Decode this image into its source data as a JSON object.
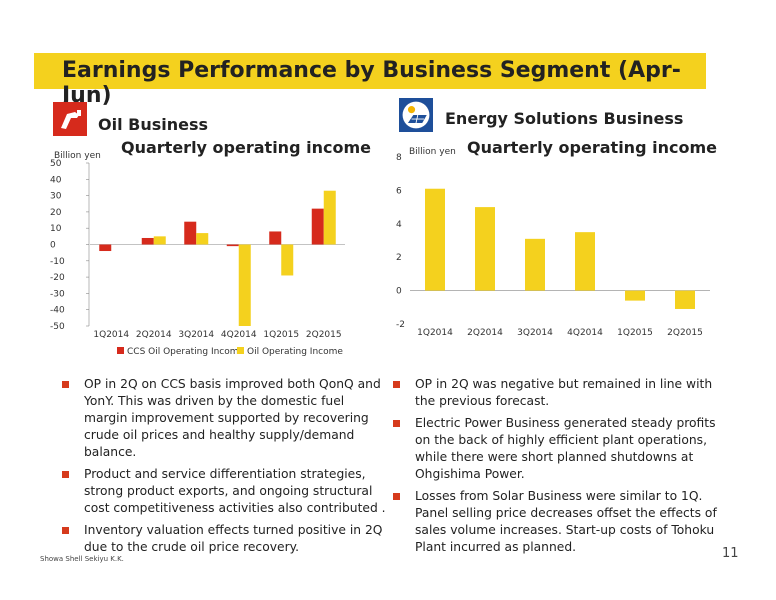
{
  "title": "Earnings Performance by Business Segment (Apr-Jun)",
  "oil": {
    "section_title": "Oil Business",
    "chart_title": "Quarterly operating income",
    "icon": "fuel-nozzle-icon"
  },
  "energy": {
    "section_title": "Energy Solutions Business",
    "chart_title": "Quarterly operating income",
    "icon": "solar-panel-icon"
  },
  "oil_bullets": [
    "OP in 2Q on CCS basis improved both QonQ and YonY.  This was driven by the domestic fuel margin improvement supported by recovering crude oil prices and healthy supply/demand balance.",
    "Product and service differentiation strategies, strong product exports, and ongoing structural cost competitiveness activities also contributed .",
    "Inventory valuation effects turned positive in 2Q due to the crude oil price recovery."
  ],
  "energy_bullets": [
    "OP in 2Q was negative but remained in line with the previous forecast.",
    "Electric Power Business generated steady profits on the back of highly efficient plant operations, while there were short planned shutdowns at Ohgishima Power.",
    "Losses from Solar Business were similar to 1Q. Panel selling price decreases offset the effects of sales volume increases. Start-up costs of Tohoku Plant incurred as planned."
  ],
  "footer": "Showa Shell Sekiyu K.K.",
  "page_number": "11",
  "colors": {
    "accent_yellow": "#f4d11e",
    "bar_red": "#d62a1c",
    "bar_yellow": "#f4d11e",
    "bullet": "#d63a1c"
  },
  "chart_data": [
    {
      "type": "bar",
      "unit": "Billion yen",
      "categories": [
        "1Q2014",
        "2Q2014",
        "3Q2014",
        "4Q2014",
        "1Q2015",
        "2Q2015"
      ],
      "series": [
        {
          "name": "CCS Oil Operating Income",
          "values": [
            -4,
            4,
            14,
            -1,
            8,
            22
          ]
        },
        {
          "name": "Oil Operating Income",
          "values": [
            0,
            5,
            7,
            -50,
            -19,
            33
          ]
        }
      ],
      "ylim": [
        -50,
        50
      ],
      "yticks": [
        50,
        40,
        30,
        20,
        10,
        0,
        -10,
        -20,
        -30,
        -40,
        -50
      ],
      "legend": "bottom"
    },
    {
      "type": "bar",
      "unit": "Billion yen",
      "categories": [
        "1Q2014",
        "2Q2014",
        "3Q2014",
        "4Q2014",
        "1Q2015",
        "2Q2015"
      ],
      "values": [
        6.1,
        5.0,
        3.1,
        3.5,
        -0.6,
        -1.1
      ],
      "ylim": [
        -2,
        8
      ],
      "yticks": [
        8,
        6,
        4,
        2,
        0,
        -2
      ]
    }
  ]
}
